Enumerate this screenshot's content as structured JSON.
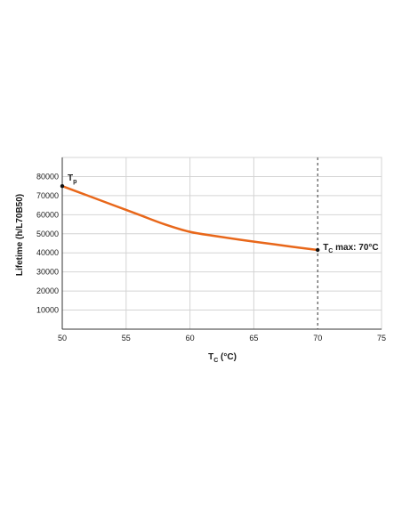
{
  "chart_data": {
    "type": "line",
    "title": "",
    "xlabel": "T",
    "xlabel_sub": "C",
    "xlabel_unit": " (°C)",
    "ylabel": "Lifetime (h/L70B50)",
    "xlim": [
      50,
      75
    ],
    "ylim": [
      0,
      90000
    ],
    "x_ticks": [
      50,
      55,
      60,
      65,
      70,
      75
    ],
    "x_tick_labels": [
      "50",
      "55",
      "60",
      "65",
      "70",
      "75"
    ],
    "y_ticks": [
      10000,
      20000,
      30000,
      40000,
      50000,
      60000,
      70000,
      80000
    ],
    "y_tick_labels": [
      "10000",
      "20000",
      "30000",
      "40000",
      "50000",
      "60000",
      "70000",
      "80000"
    ],
    "grid": true,
    "series": [
      {
        "color": "#e8671a",
        "x": [
          50,
          52,
          54,
          56,
          58,
          60,
          62,
          64,
          66,
          68,
          70
        ],
        "y": [
          75000,
          70000,
          65000,
          60000,
          55000,
          51000,
          48800,
          46800,
          45000,
          43200,
          41500
        ]
      }
    ],
    "markers": [
      {
        "x": 50,
        "y": 75000,
        "label_main": "T",
        "label_sub": "p",
        "label_rest": ""
      },
      {
        "x": 70,
        "y": 41500,
        "label_main": "T",
        "label_sub": "C",
        "label_rest": " max: 70°C"
      }
    ],
    "reference_line": {
      "x": 70,
      "style": "dashed"
    },
    "colors": {
      "line": "#e8671a",
      "grid": "#d4d4d4",
      "axis": "#333333",
      "marker": "#111111"
    }
  }
}
